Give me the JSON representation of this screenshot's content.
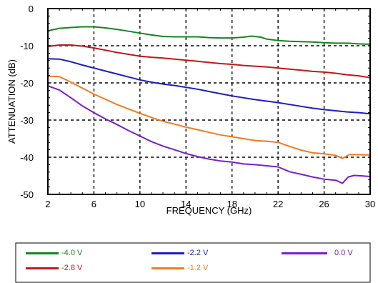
{
  "chart_data": {
    "type": "line",
    "title": "",
    "xlabel": "FREQUENCY (GHz)",
    "ylabel": "ATTENUATION (dB)",
    "xlim": [
      2,
      30
    ],
    "ylim": [
      -50,
      0
    ],
    "xticks": [
      2,
      6,
      10,
      14,
      18,
      22,
      26,
      30
    ],
    "yticks": [
      0,
      -10,
      -20,
      -30,
      -40,
      -50
    ],
    "xtick_labels": [
      "2",
      "6",
      "10",
      "14",
      "18",
      "22",
      "26",
      "30"
    ],
    "ytick_labels": [
      "0",
      "-10",
      "-20",
      "-30",
      "-40",
      "-50"
    ],
    "grid": true,
    "grid_style": "dashed",
    "legend_position": "bottom",
    "series": [
      {
        "name": "-4.0 V",
        "color": "#16861e",
        "x": [
          2,
          3,
          4,
          5,
          6,
          7,
          8,
          9,
          10,
          11,
          12,
          13,
          14,
          15,
          16,
          17,
          18,
          19,
          19.7,
          20.5,
          21,
          22,
          23,
          24,
          25,
          26,
          27,
          28,
          29,
          30
        ],
        "y": [
          -6.0,
          -5.3,
          -5.1,
          -4.9,
          -4.9,
          -5.2,
          -5.6,
          -6.1,
          -6.6,
          -7.1,
          -7.5,
          -7.6,
          -7.6,
          -7.6,
          -7.8,
          -7.9,
          -7.9,
          -7.7,
          -7.4,
          -7.7,
          -8.2,
          -8.6,
          -8.8,
          -8.9,
          -9.0,
          -9.2,
          -9.3,
          -9.3,
          -9.5,
          -9.6
        ]
      },
      {
        "name": "-2.8 V",
        "color": "#c0181c",
        "x": [
          2,
          3,
          4,
          5,
          6,
          7,
          8,
          9,
          10,
          11,
          12,
          13,
          14,
          15,
          16,
          17,
          18,
          19,
          20,
          21,
          22,
          23,
          24,
          25,
          26,
          27,
          28,
          29,
          30
        ],
        "y": [
          -10.2,
          -9.8,
          -9.8,
          -10.1,
          -10.6,
          -11.2,
          -11.8,
          -12.3,
          -12.8,
          -13.1,
          -13.3,
          -13.6,
          -13.9,
          -14.2,
          -14.5,
          -14.8,
          -15.0,
          -15.3,
          -15.5,
          -15.7,
          -16.0,
          -16.3,
          -16.6,
          -16.9,
          -17.1,
          -17.4,
          -17.8,
          -18.1,
          -18.6
        ]
      },
      {
        "name": "-2.2 V",
        "color": "#1c1ec0",
        "x": [
          2,
          3,
          4,
          5,
          6,
          7,
          8,
          9,
          10,
          11,
          12,
          13,
          14,
          15,
          16,
          17,
          18,
          19,
          20,
          21,
          22,
          23,
          24,
          25,
          26,
          27,
          28,
          29,
          30
        ],
        "y": [
          -13.5,
          -13.6,
          -14.3,
          -15.2,
          -16.0,
          -16.8,
          -17.6,
          -18.4,
          -19.2,
          -19.8,
          -20.3,
          -20.7,
          -21.2,
          -21.7,
          -22.3,
          -22.9,
          -23.5,
          -24.0,
          -24.5,
          -24.9,
          -25.3,
          -25.8,
          -26.3,
          -26.8,
          -27.2,
          -27.5,
          -27.8,
          -28.0,
          -28.3
        ]
      },
      {
        "name": "-1.2 V",
        "color": "#f47a20",
        "x": [
          2,
          3,
          4,
          5,
          6,
          7,
          8,
          9,
          10,
          11,
          12,
          13,
          14,
          15,
          16,
          17,
          18,
          19,
          20,
          21,
          22,
          23,
          24,
          25,
          26,
          27,
          27.6,
          28.2,
          29,
          30
        ],
        "y": [
          -18.2,
          -18.3,
          -19.8,
          -21.4,
          -23.0,
          -24.4,
          -25.8,
          -27.0,
          -28.2,
          -29.3,
          -30.3,
          -31.1,
          -31.9,
          -32.6,
          -33.3,
          -34.0,
          -34.5,
          -35.0,
          -35.5,
          -35.7,
          -36.0,
          -37.1,
          -38.1,
          -38.8,
          -39.1,
          -39.5,
          -40.3,
          -39.3,
          -39.3,
          -39.4
        ]
      },
      {
        "name": "0.0 V",
        "color": "#7a1fc8",
        "x": [
          2,
          3,
          4,
          5,
          6,
          7,
          8,
          9,
          10,
          11,
          12,
          13,
          14,
          15,
          16,
          17,
          18,
          19,
          20,
          21,
          22,
          23,
          24,
          25,
          26,
          27,
          27.6,
          28.1,
          28.6,
          29.2,
          30
        ],
        "y": [
          -20.8,
          -21.9,
          -24.0,
          -26.2,
          -28.0,
          -29.7,
          -31.2,
          -32.8,
          -34.3,
          -35.8,
          -37.0,
          -38.0,
          -39.0,
          -39.8,
          -40.5,
          -41.0,
          -41.3,
          -41.8,
          -42.0,
          -42.3,
          -42.6,
          -43.9,
          -44.6,
          -45.3,
          -45.9,
          -46.2,
          -47.0,
          -45.3,
          -44.9,
          -45.0,
          -45.2
        ]
      }
    ]
  }
}
